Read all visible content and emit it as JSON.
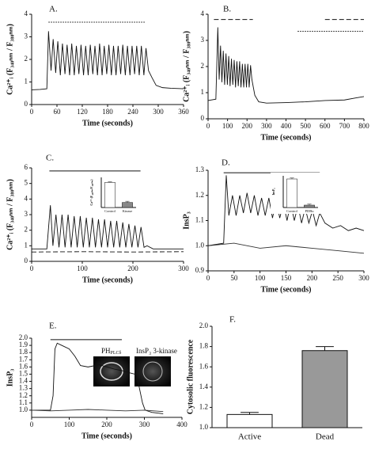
{
  "chart_data": [
    {
      "type": "line",
      "label": "A.",
      "xlabel": "Time (seconds)",
      "ylabel": "Ca²⁺ᵢ (F₃₄₀ₙₘ / F₃₈₀ₙₘ)",
      "xlim": [
        0,
        360
      ],
      "xticks": [
        0,
        60,
        120,
        180,
        240,
        300,
        360
      ],
      "ylim": [
        0,
        4
      ],
      "yticks": [
        0,
        1,
        2,
        3,
        4
      ],
      "series": [
        {
          "color": "#111111",
          "x": [
            0,
            20,
            36,
            40,
            46,
            51,
            57,
            62,
            68,
            73,
            79,
            84,
            90,
            95,
            101,
            106,
            112,
            117,
            123,
            128,
            134,
            139,
            145,
            150,
            156,
            161,
            167,
            172,
            178,
            183,
            189,
            194,
            200,
            205,
            211,
            216,
            222,
            227,
            233,
            238,
            244,
            249,
            255,
            260,
            266,
            271,
            277,
            285,
            295,
            310,
            330,
            360
          ],
          "values": [
            0.65,
            0.67,
            0.7,
            3.25,
            1.5,
            2.9,
            1.4,
            2.8,
            1.3,
            2.7,
            1.35,
            2.65,
            1.3,
            2.7,
            1.3,
            2.6,
            1.35,
            2.65,
            1.3,
            2.6,
            1.3,
            2.65,
            1.35,
            2.6,
            1.3,
            2.7,
            1.3,
            2.6,
            1.35,
            2.65,
            1.3,
            2.6,
            1.3,
            2.6,
            1.35,
            2.65,
            1.3,
            2.6,
            1.3,
            2.6,
            1.35,
            2.6,
            1.3,
            2.6,
            1.3,
            2.5,
            1.5,
            1.2,
            0.85,
            0.75,
            0.72,
            0.7
          ]
        }
      ],
      "stimulus": [
        {
          "x": [
            40,
            270
          ],
          "y": 3.65,
          "dash": "dotted"
        }
      ]
    },
    {
      "type": "line",
      "label": "B.",
      "xlabel": "Time (seconds)",
      "ylabel": "Ca²⁺ᵢ (F₃₄₀ₙₘ / F₃₈₀ₙₘ)",
      "xlim": [
        0,
        800
      ],
      "xticks": [
        0,
        100,
        200,
        300,
        400,
        500,
        600,
        700,
        800
      ],
      "ylim": [
        0,
        4
      ],
      "yticks": [
        0,
        1,
        2,
        3,
        4
      ],
      "series": [
        {
          "color": "#111111",
          "x": [
            0,
            40,
            50,
            57,
            64,
            71,
            78,
            85,
            92,
            99,
            106,
            113,
            120,
            127,
            134,
            141,
            148,
            155,
            162,
            169,
            176,
            183,
            190,
            197,
            204,
            211,
            218,
            225,
            240,
            260,
            300,
            400,
            500,
            600,
            700,
            760,
            800
          ],
          "values": [
            0.7,
            0.75,
            3.5,
            1.5,
            2.8,
            1.4,
            2.6,
            1.3,
            2.5,
            1.3,
            2.4,
            1.25,
            2.3,
            1.3,
            2.25,
            1.2,
            2.2,
            1.25,
            2.2,
            1.2,
            2.1,
            1.2,
            2.1,
            1.2,
            2.1,
            1.2,
            2.05,
            1.5,
            0.9,
            0.65,
            0.6,
            0.62,
            0.65,
            0.7,
            0.72,
            0.8,
            0.85
          ]
        }
      ],
      "stimulus": [
        {
          "x": [
            30,
            230
          ],
          "y": 3.8,
          "dash": "dashed"
        },
        {
          "x": [
            460,
            800
          ],
          "y": 3.35,
          "dash": "dotted"
        },
        {
          "x": [
            600,
            800
          ],
          "y": 3.8,
          "dash": "dashed"
        }
      ]
    },
    {
      "type": "line",
      "label": "C.",
      "xlabel": "Time (seconds)",
      "ylabel": "Ca²⁺ᵢ (F₃₄₀ₙₘ / F₃₈₀ₙₘ)",
      "xlim": [
        0,
        300
      ],
      "xticks": [
        0,
        100,
        200,
        300
      ],
      "ylim": [
        0,
        6
      ],
      "yticks": [
        0,
        1,
        2,
        3,
        4,
        5,
        6
      ],
      "series": [
        {
          "color": "#111111",
          "x": [
            0,
            30,
            37,
            42,
            48,
            54,
            60,
            66,
            72,
            78,
            84,
            90,
            96,
            102,
            108,
            114,
            120,
            126,
            132,
            138,
            144,
            150,
            156,
            162,
            168,
            174,
            180,
            186,
            192,
            198,
            204,
            210,
            216,
            222,
            228,
            240,
            260,
            300
          ],
          "values": [
            0.8,
            0.8,
            3.6,
            1.0,
            3.0,
            0.9,
            3.0,
            0.9,
            3.0,
            0.9,
            2.9,
            0.9,
            2.9,
            0.9,
            2.8,
            0.9,
            2.8,
            0.9,
            2.7,
            0.9,
            2.7,
            0.9,
            2.6,
            0.9,
            2.6,
            0.9,
            2.5,
            0.9,
            2.4,
            0.9,
            2.3,
            0.9,
            2.2,
            0.9,
            1.0,
            0.8,
            0.8,
            0.8
          ]
        },
        {
          "color": "#111111",
          "dash": "dashed",
          "x": [
            0,
            100,
            200,
            300
          ],
          "values": [
            0.6,
            0.62,
            0.6,
            0.62
          ]
        }
      ],
      "stimulus": [
        {
          "x": [
            35,
            215
          ],
          "y": 5.8,
          "dash": "solid"
        }
      ],
      "inset": {
        "type": "bar",
        "ylabel": "Ca²⁺ (F₃₄₀ₙₘ/F₃₈₀ₙₘ)",
        "categories": [
          "Control",
          "Kinase"
        ],
        "values": [
          2.5,
          0.5
        ],
        "errors": [
          0.06,
          0.12
        ],
        "colors": [
          "#ffffff",
          "#888888"
        ],
        "ylim": [
          0,
          3
        ]
      }
    },
    {
      "type": "line",
      "label": "D.",
      "xlabel": "Time (seconds)",
      "ylabel": "InsP₃",
      "xlim": [
        0,
        300
      ],
      "xticks": [
        0,
        50,
        100,
        150,
        200,
        250,
        300
      ],
      "ylim": [
        0.9,
        1.3
      ],
      "yticks": [
        0.9,
        {
          "value": 1,
          "label": "1.0"
        },
        1.1,
        1.2,
        1.3
      ],
      "series": [
        {
          "color": "#111111",
          "x": [
            0,
            30,
            35,
            40,
            47,
            54,
            61,
            68,
            75,
            82,
            89,
            96,
            103,
            110,
            117,
            124,
            131,
            138,
            145,
            152,
            159,
            166,
            173,
            180,
            187,
            194,
            201,
            208,
            215,
            225,
            240,
            255,
            270,
            285,
            300
          ],
          "values": [
            1.0,
            1.01,
            1.28,
            1.12,
            1.2,
            1.12,
            1.2,
            1.13,
            1.21,
            1.13,
            1.2,
            1.12,
            1.19,
            1.12,
            1.19,
            1.11,
            1.18,
            1.11,
            1.17,
            1.1,
            1.17,
            1.1,
            1.16,
            1.09,
            1.15,
            1.09,
            1.14,
            1.08,
            1.13,
            1.09,
            1.07,
            1.08,
            1.06,
            1.07,
            1.06
          ]
        },
        {
          "color": "#333333",
          "x": [
            0,
            50,
            100,
            150,
            200,
            250,
            300
          ],
          "values": [
            1.0,
            1.01,
            0.99,
            1.0,
            0.99,
            0.98,
            0.97
          ]
        }
      ],
      "stimulus": [
        {
          "x": [
            30,
            215
          ],
          "y": 1.29,
          "dash": "solid"
        }
      ],
      "inset": {
        "type": "bar",
        "ylabel": "InsP₃",
        "categories": [
          "Control",
          "PDBu"
        ],
        "values": [
          1.18,
          1.015
        ],
        "errors": [
          0.006,
          0.006
        ],
        "colors": [
          "#ffffff",
          "#888888"
        ],
        "ylim": [
          1,
          1.2
        ]
      }
    },
    {
      "type": "line",
      "label": "E.",
      "xlabel": "Time (seconds)",
      "ylabel": "InsP₃",
      "xlim": [
        0,
        400
      ],
      "xticks": [
        0,
        100,
        200,
        300,
        400
      ],
      "ylim": [
        0.9,
        2.0
      ],
      "yticks": [
        {
          "value": 1,
          "label": "1.0"
        },
        1.1,
        1.2,
        1.3,
        1.4,
        1.5,
        1.6,
        1.7,
        1.8,
        1.9,
        {
          "value": 2,
          "label": "2.0"
        }
      ],
      "series": [
        {
          "color": "#111111",
          "x": [
            0,
            50,
            57,
            62,
            68,
            80,
            100,
            115,
            130,
            150,
            180,
            200,
            220,
            240,
            260,
            275,
            285,
            295,
            302,
            320,
            350
          ],
          "values": [
            1.0,
            1.0,
            1.2,
            1.85,
            1.93,
            1.9,
            1.85,
            1.75,
            1.62,
            1.6,
            1.63,
            1.6,
            1.57,
            1.55,
            1.52,
            1.5,
            1.35,
            1.1,
            1.0,
            0.97,
            0.95
          ]
        },
        {
          "color": "#333333",
          "x": [
            0,
            50,
            100,
            150,
            200,
            250,
            300,
            350
          ],
          "values": [
            1.0,
            0.99,
            1.0,
            1.01,
            1.0,
            0.99,
            1.0,
            0.98
          ]
        }
      ],
      "stimulus": [
        {
          "x": [
            50,
            240
          ],
          "y": 1.98,
          "dash": "solid"
        }
      ],
      "images": [
        {
          "text": "PH",
          "sub": "PLCδ"
        },
        {
          "text": "InsP₃ 3-kinase"
        }
      ]
    },
    {
      "type": "bar",
      "label": "F.",
      "ylabel": "Cytosolic fluorescence",
      "categories": [
        "Active",
        "Dead"
      ],
      "values": [
        1.13,
        1.76
      ],
      "errors": [
        0.02,
        0.04
      ],
      "colors": [
        "#ffffff",
        "#999999"
      ],
      "ylim": [
        1,
        2
      ],
      "yticks": [
        {
          "value": 1,
          "label": "1.0"
        },
        1.2,
        1.4,
        1.6,
        1.8,
        {
          "value": 2,
          "label": "2.0"
        }
      ]
    }
  ]
}
